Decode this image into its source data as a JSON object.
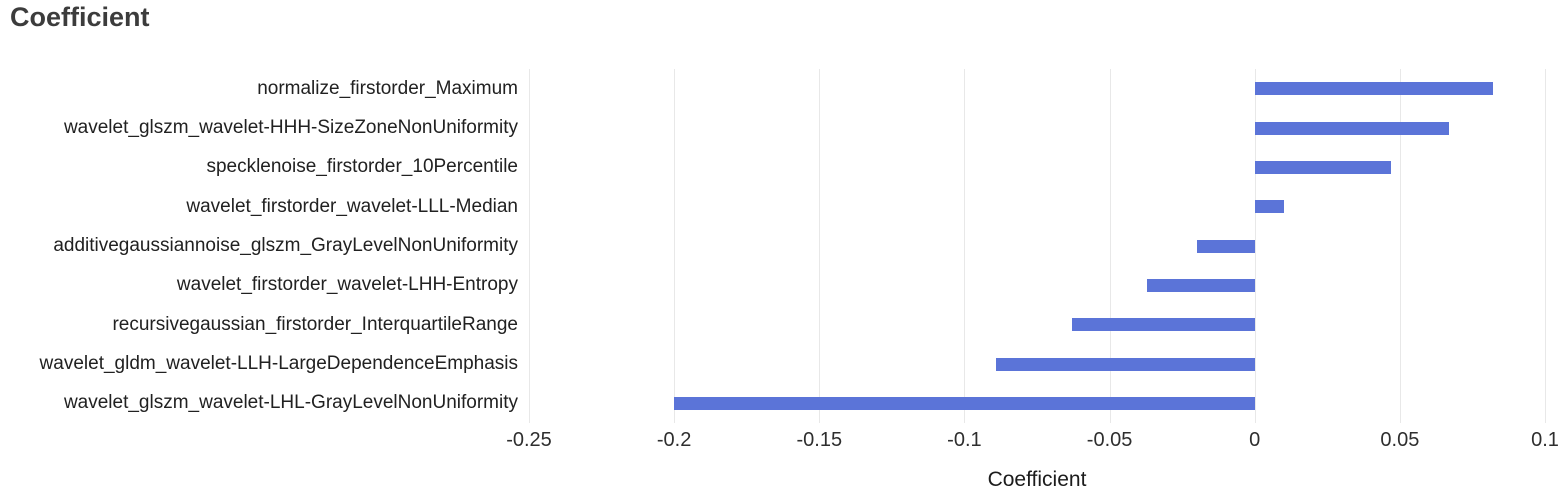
{
  "title": "Coefficient",
  "chart_data": {
    "type": "bar",
    "orientation": "horizontal",
    "title": "Coefficient",
    "xlabel": "Coefficient",
    "ylabel": "",
    "categories": [
      "normalize_firstorder_Maximum",
      "wavelet_glszm_wavelet-HHH-SizeZoneNonUniformity",
      "specklenoise_firstorder_10Percentile",
      "wavelet_firstorder_wavelet-LLL-Median",
      "additivegaussiannoise_glszm_GrayLevelNonUniformity",
      "wavelet_firstorder_wavelet-LHH-Entropy",
      "recursivegaussian_firstorder_InterquartileRange",
      "wavelet_gldm_wavelet-LLH-LargeDependenceEmphasis",
      "wavelet_glszm_wavelet-LHL-GrayLevelNonUniformity"
    ],
    "values": [
      0.082,
      0.067,
      0.047,
      0.01,
      -0.02,
      -0.037,
      -0.063,
      -0.089,
      -0.2
    ],
    "xlim": [
      -0.25,
      0.1
    ],
    "xticks": [
      -0.25,
      -0.2,
      -0.15,
      -0.1,
      -0.05,
      0,
      0.05,
      0.1
    ],
    "xtick_labels": [
      "-0.25",
      "-0.2",
      "-0.15",
      "-0.1",
      "-0.05",
      "0",
      "0.05",
      "0.1"
    ],
    "grid": true,
    "legend": "none",
    "colors": {
      "bar": "#5B74D8",
      "grid": "#E8E8E8",
      "title": "#3C3C3C",
      "category_label": "#212121",
      "tick_label": "#2E2E2E",
      "axis_title": "#1C1C1C",
      "background": "#FFFFFF"
    }
  }
}
